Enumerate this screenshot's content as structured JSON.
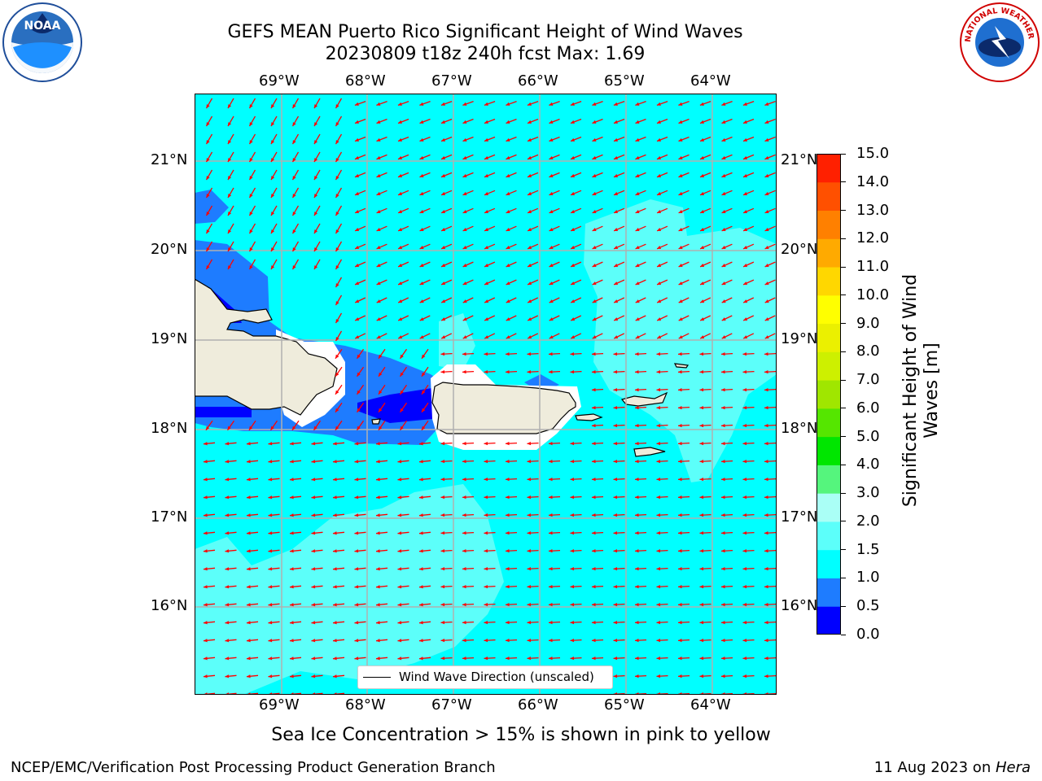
{
  "title": {
    "line1": "GEFS MEAN Puerto Rico Significant Height of Wind Waves",
    "line2": "20230809 t18z 240h fcst   Max: 1.69"
  },
  "axes": {
    "lon_ticks": [
      "69°W",
      "68°W",
      "67°W",
      "66°W",
      "65°W",
      "64°W"
    ],
    "lat_ticks": [
      "21°N",
      "20°N",
      "19°N",
      "18°N",
      "17°N",
      "16°N"
    ]
  },
  "legend": {
    "label": "Wind Wave Direction (unscaled)"
  },
  "colorbar": {
    "title_line1": "Significant Height of Wind",
    "title_line2": "Waves [m]",
    "tick_labels": [
      "0.0",
      "0.5",
      "1.0",
      "1.5",
      "2.0",
      "3.0",
      "4.0",
      "5.0",
      "6.0",
      "7.0",
      "8.0",
      "9.0",
      "10.0",
      "11.0",
      "12.0",
      "13.0",
      "14.0",
      "15.0"
    ],
    "colors": [
      "#0000ff",
      "#1e7cff",
      "#00ffff",
      "#5cfffa",
      "#aafff6",
      "#55f57d",
      "#00e600",
      "#55e600",
      "#a0e600",
      "#cdf000",
      "#ebf000",
      "#ffff00",
      "#ffd700",
      "#ffaa00",
      "#ff8000",
      "#ff5000",
      "#ff2000"
    ]
  },
  "notes": {
    "sea_ice": "Sea Ice Concentration > 15% is shown in pink to yellow",
    "producer": "NCEP/EMC/Verification Post Processing Product Generation Branch",
    "date": "11 Aug 2023 on ",
    "machine": "Hera"
  },
  "logos": {
    "noaa": "NOAA",
    "nws": "NATIONAL WEATHER SERVICE"
  },
  "map_colors": {
    "ocean": "#00ffff",
    "light_band": "#5cfffa",
    "mid_band": "#1e7cff",
    "deep_band": "#0000ff",
    "land": "#efecdc",
    "arrow": "#ff0000",
    "grid": "#b0b0b0"
  }
}
